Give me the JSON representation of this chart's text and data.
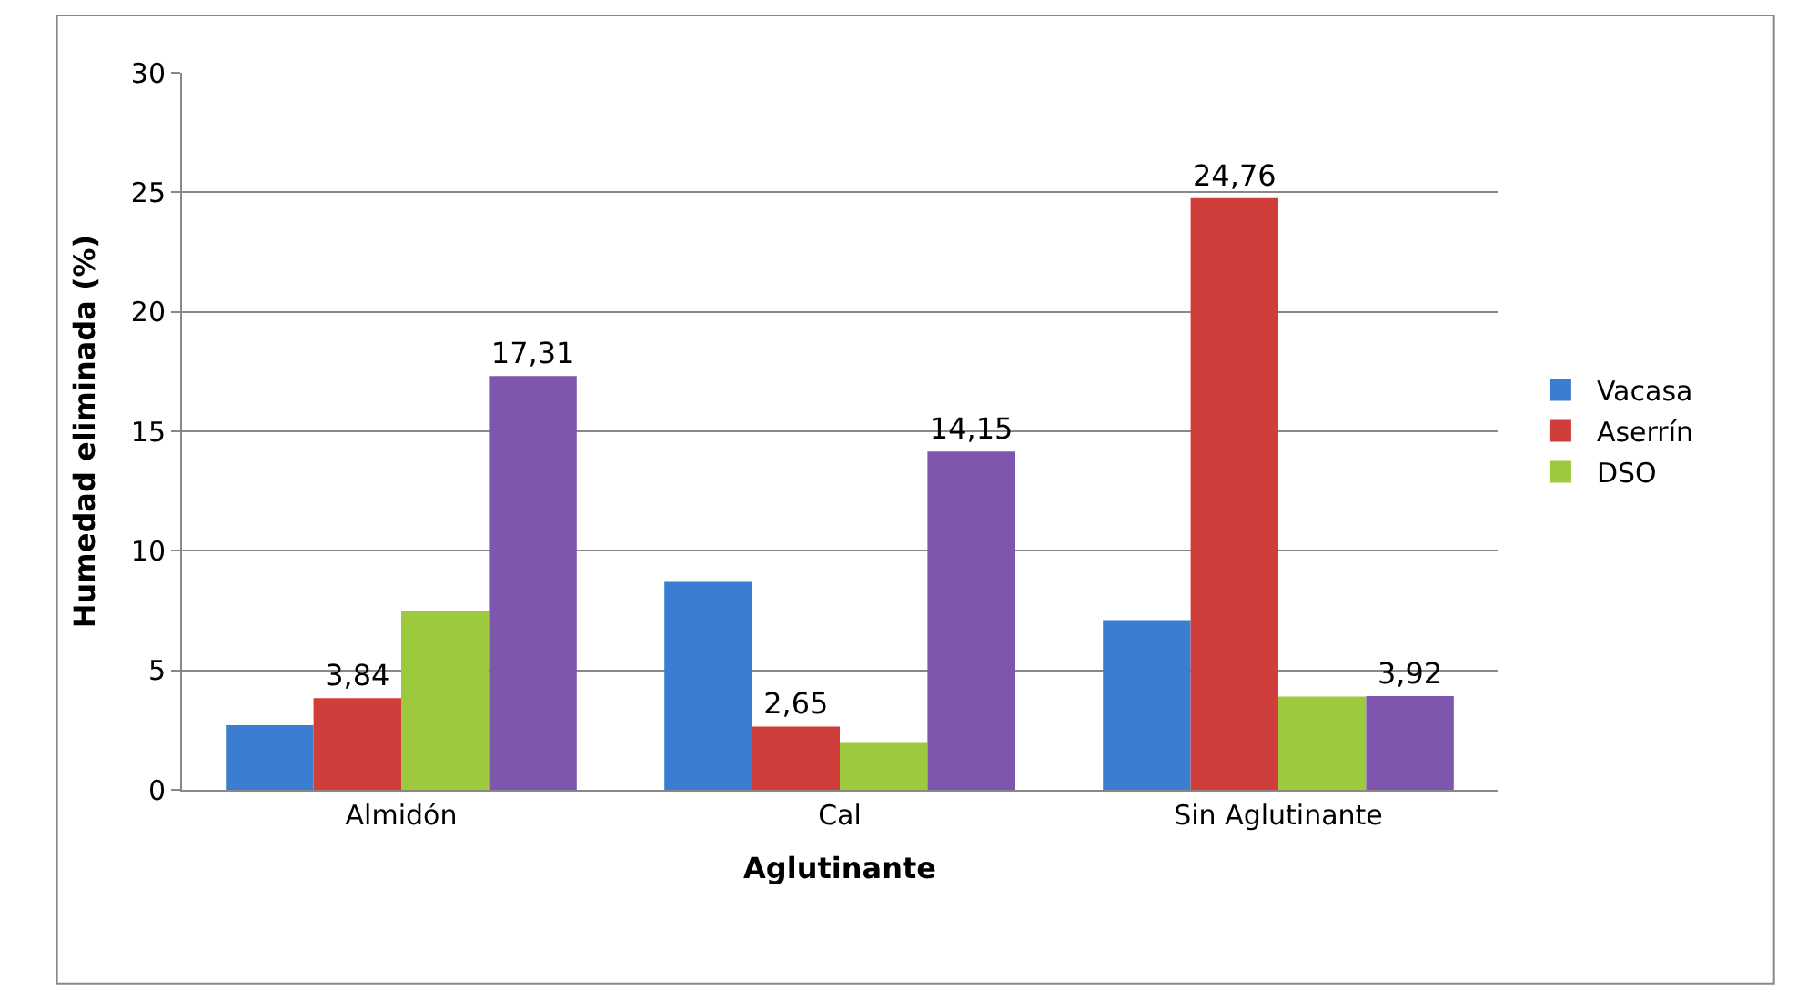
{
  "chart_data": {
    "type": "bar",
    "xlabel": "Aglutinante",
    "ylabel": "Humedad eliminada (%)",
    "categories": [
      "Almidón",
      "Cal",
      "Sin Aglutinante"
    ],
    "series": [
      {
        "name": "Vacasa",
        "color": "#3b7dd0",
        "values": [
          2.7,
          8.7,
          7.1
        ]
      },
      {
        "name": "Aserrín",
        "color": "#cf3e3a",
        "values": [
          3.84,
          2.65,
          24.76
        ],
        "value_labels": [
          "3,84",
          "2,65",
          "24,76"
        ]
      },
      {
        "name": "DSO",
        "color": "#9cc93e",
        "values": [
          7.5,
          2.0,
          3.9
        ]
      },
      {
        "color": "#7e56ad",
        "values": [
          17.31,
          14.15,
          3.92
        ],
        "value_labels": [
          "17,31",
          "14,15",
          "3,92"
        ]
      }
    ],
    "ylim": [
      0,
      30
    ],
    "yticks": [
      0,
      5,
      10,
      15,
      20,
      25,
      30
    ],
    "grid": "y",
    "legend": "right"
  }
}
